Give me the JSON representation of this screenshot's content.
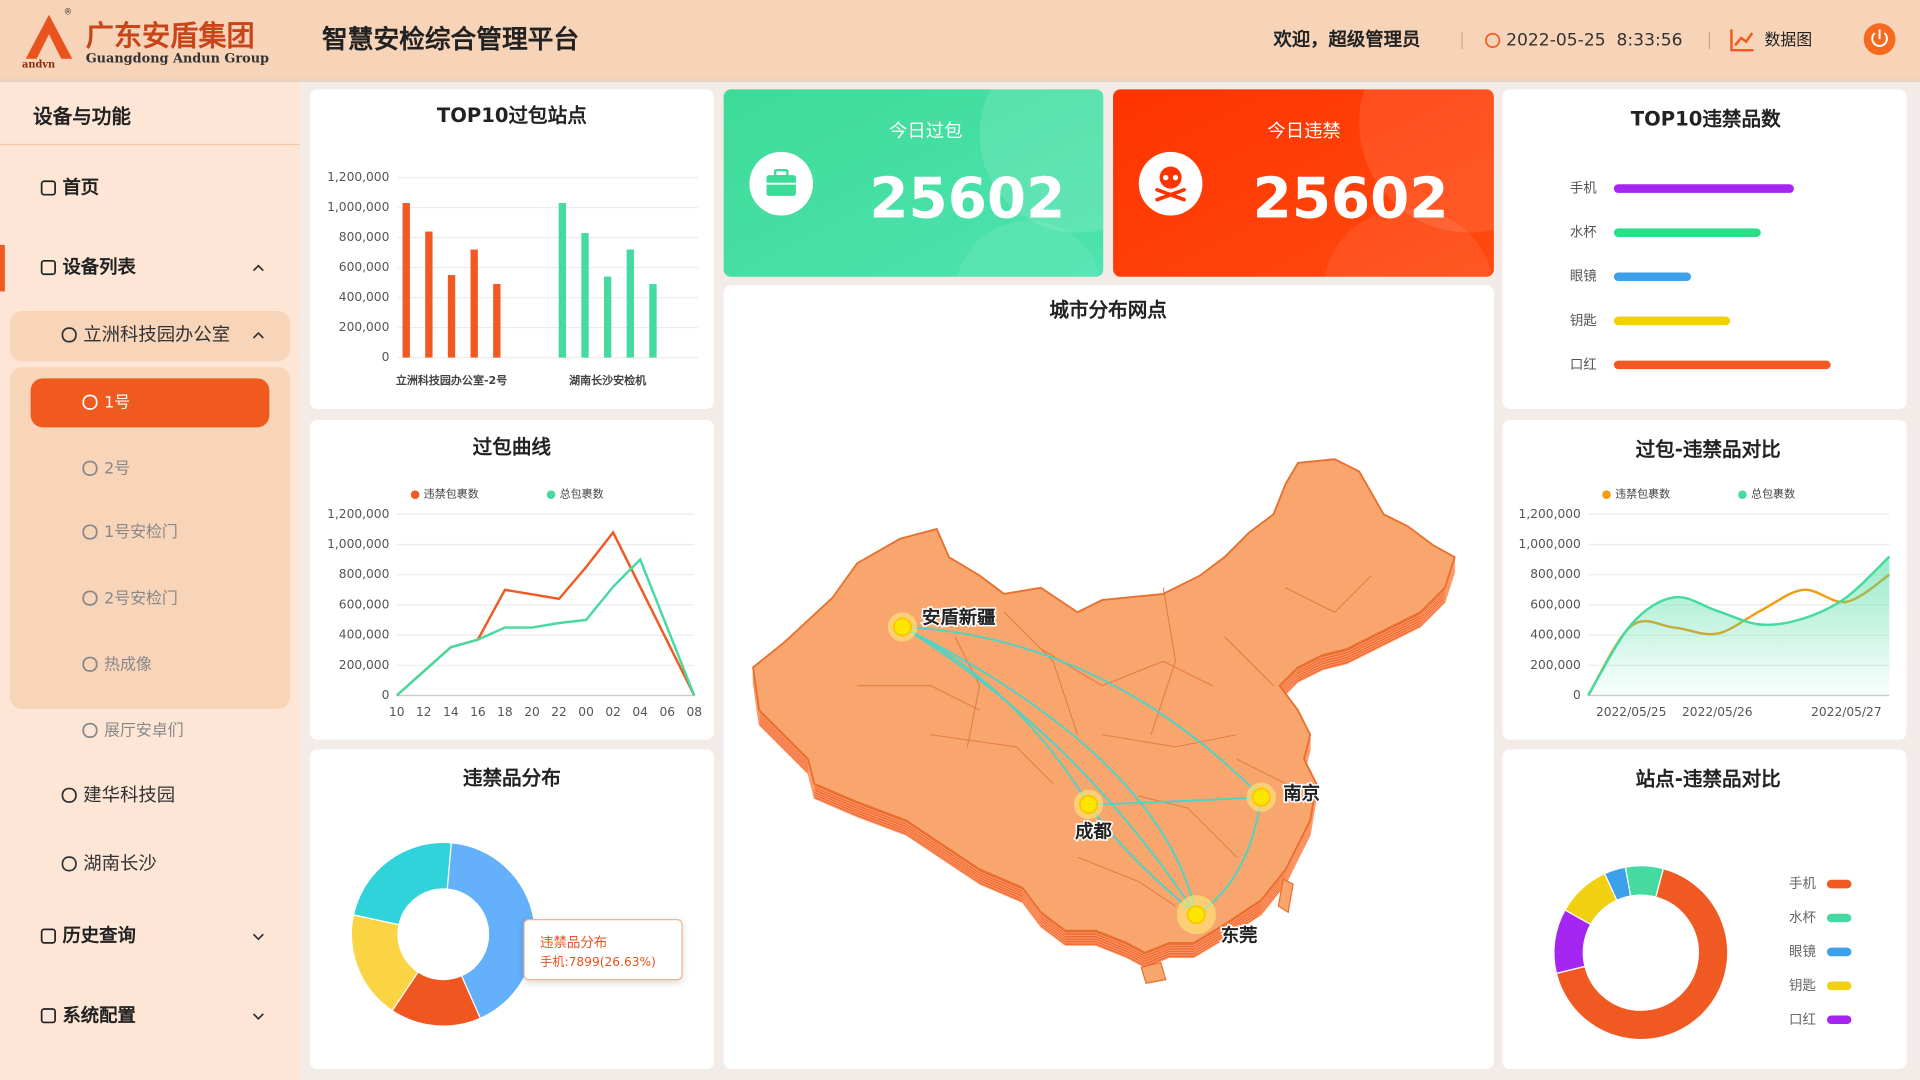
{
  "header": {
    "logo_text": "andvn",
    "registered": "®",
    "company": "广东安盾集团",
    "company_en": "Guangdong Andun Group",
    "title": "智慧安检综合管理平台",
    "welcome": "欢迎，超级管理员",
    "datetime": "2022-05-25  8:33:56",
    "data_link": "数据图"
  },
  "sidebar": {
    "title": "设备与功能",
    "items": [
      "首页",
      "设备列表",
      "立洲科技园办公室",
      "1号",
      "2号",
      "1号安检门",
      "2号安检门",
      "热成像",
      "展厅安卓们",
      "建华科技园",
      "湖南长沙",
      "历史查询",
      "系统配置"
    ]
  },
  "kpis": [
    {
      "label": "今日过包",
      "value": 25602
    },
    {
      "label": "今日违禁",
      "value": 25602
    }
  ],
  "map": {
    "title": "城市分布网点",
    "cities": [
      "安盾新疆",
      "成都",
      "南京",
      "东莞"
    ]
  },
  "chart_data": [
    {
      "type": "bar",
      "title": "TOP10过包站点",
      "categories": [
        "立洲科技园办公室-2号",
        "湖南长沙安检机"
      ],
      "values": [
        [
          1030000,
          840000,
          550000,
          720000,
          490000
        ],
        [
          1030000,
          830000,
          540000,
          720000,
          490000
        ]
      ],
      "colors": [
        "#f05a22",
        "#45dba0"
      ],
      "ylim": [
        0,
        1200000
      ],
      "yticks": [
        0,
        {
          "value": 200000,
          "label": "200,000"
        },
        {
          "value": 400000,
          "label": "400,000"
        },
        {
          "value": 600000,
          "label": "600,000"
        },
        {
          "value": 800000,
          "label": "800,000"
        },
        {
          "value": 1000000,
          "label": "1,000,000"
        },
        {
          "value": 1200000,
          "label": "1,200,000"
        }
      ],
      "grid": true
    },
    {
      "type": "line",
      "title": "过包曲线",
      "categories": [
        "10",
        "12",
        "14",
        "16",
        "18",
        "20",
        "22",
        "00",
        "02",
        "04",
        "06",
        "08"
      ],
      "series": [
        {
          "name": "违禁包裹数",
          "color": "#f05a22",
          "values": [
            0,
            160000,
            320000,
            370000,
            700000,
            670000,
            640000,
            850000,
            1080000,
            720000,
            360000,
            0
          ]
        },
        {
          "name": "总包裹数",
          "color": "#45dba0",
          "values": [
            0,
            160000,
            320000,
            370000,
            450000,
            450000,
            480000,
            500000,
            720000,
            900000,
            450000,
            0
          ]
        }
      ],
      "ylim": [
        0,
        1200000
      ],
      "yticks": [
        0,
        {
          "value": 200000,
          "label": "200,000"
        },
        {
          "value": 400000,
          "label": "400,000"
        },
        {
          "value": 600000,
          "label": "600,000"
        },
        {
          "value": 800000,
          "label": "800,000"
        },
        {
          "value": 1000000,
          "label": "1,000,000"
        },
        {
          "value": 1200000,
          "label": "1,200,000"
        }
      ],
      "grid": true,
      "smooth": false,
      "legend": "top"
    },
    {
      "type": "pie",
      "title": "违禁品分布",
      "values": [
        42,
        16,
        19,
        23
      ],
      "colors": [
        "#64b0fa",
        "#f0561f",
        "#fbd444",
        "#2fd3d9"
      ],
      "donut": true,
      "tooltip": {
        "title": "违禁品分布",
        "text": "手机:7899(26.63%)"
      }
    },
    {
      "type": "bar",
      "orientation": "horizontal",
      "title": "TOP10违禁品数",
      "categories": [
        "手机",
        "水杯",
        "眼镜",
        "钥匙",
        "口红"
      ],
      "values": [
        147,
        120,
        63,
        95,
        177
      ],
      "colors": [
        "#a526f0",
        "#2edc8a",
        "#3da0ea",
        "#f0d010",
        "#f05a22"
      ]
    },
    {
      "type": "line",
      "title": "过包-违禁品对比",
      "categories": [
        null,
        "2022/05/25",
        null,
        "2022/05/26",
        null,
        null,
        "2022/05/27",
        null
      ],
      "series": [
        {
          "name": "违禁包裹数",
          "color": "#f39c12",
          "values": [
            0,
            460000,
            450000,
            410000,
            560000,
            700000,
            620000,
            800000
          ]
        },
        {
          "name": "总包裹数",
          "color": "#45dba0",
          "values": [
            0,
            470000,
            650000,
            560000,
            470000,
            510000,
            650000,
            920000
          ],
          "area": true
        }
      ],
      "ylim": [
        0,
        1200000
      ],
      "yticks": [
        0,
        {
          "value": 200000,
          "label": "200,000"
        },
        {
          "value": 400000,
          "label": "400,000"
        },
        {
          "value": 600000,
          "label": "600,000"
        },
        {
          "value": 800000,
          "label": "800,000"
        },
        {
          "value": 1000000,
          "label": "1,000,000"
        },
        {
          "value": 1200000,
          "label": "1,200,000"
        }
      ],
      "grid": true,
      "smooth": true,
      "legend": "top"
    },
    {
      "type": "pie",
      "title": "站点-违禁品对比",
      "categories": [
        "手机",
        "水杯",
        "眼镜",
        "钥匙",
        "口红"
      ],
      "values": [
        67,
        7,
        4,
        10,
        12
      ],
      "colors": [
        "#f05a22",
        "#45dba0",
        "#3da0ea",
        "#f0d010",
        "#a526f0"
      ],
      "donut": true,
      "legend": "right",
      "title_decor": false
    }
  ]
}
